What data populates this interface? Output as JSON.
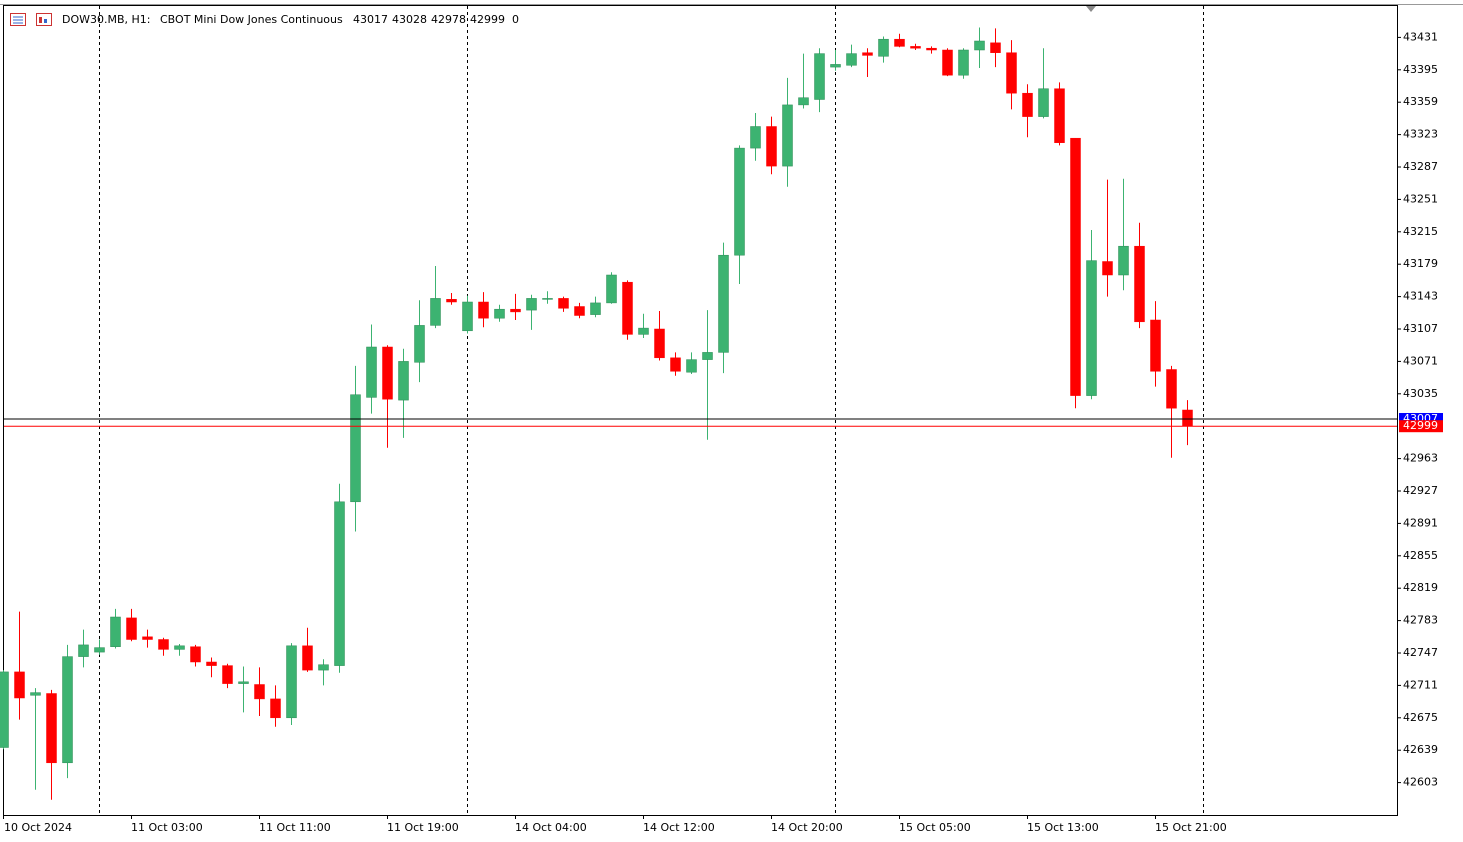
{
  "chart_data": {
    "type": "candlestick",
    "symbol": "DOW30.MB, H1:",
    "description": "CBOT Mini Dow Jones Continuous",
    "last_bar": [
      43017,
      43028,
      42978,
      42999
    ],
    "volume": 0,
    "categories": [
      "10 Oct 2024",
      null,
      null,
      null,
      null,
      null,
      null,
      null,
      "11 Oct 03:00",
      null,
      null,
      null,
      null,
      null,
      null,
      null,
      "11 Oct 11:00",
      null,
      null,
      null,
      null,
      null,
      null,
      null,
      "11 Oct 19:00",
      null,
      null,
      null,
      null,
      null,
      null,
      null,
      "14 Oct 04:00",
      null,
      null,
      null,
      null,
      null,
      null,
      null,
      "14 Oct 12:00",
      null,
      null,
      null,
      null,
      null,
      null,
      null,
      "14 Oct 20:00",
      null,
      null,
      null,
      null,
      null,
      null,
      null,
      "15 Oct 05:00",
      null,
      null,
      null,
      null,
      null,
      null,
      null,
      "15 Oct 13:00",
      null,
      null,
      null,
      null,
      null,
      null,
      null,
      "15 Oct 21:00",
      null,
      null
    ],
    "open": [
      42642,
      42726,
      42700,
      42702,
      42625,
      42743,
      42748,
      42754,
      42786,
      42765,
      42762,
      42751,
      42754,
      42737,
      42733,
      42713,
      42712,
      42696,
      42675,
      42755,
      42728,
      42733,
      42915,
      43031,
      43087,
      43028,
      43070,
      43111,
      43140,
      43105,
      43137,
      43119,
      43129,
      43128,
      43140,
      43141,
      43132,
      43123,
      43136,
      43159,
      43101,
      43107,
      43075,
      43059,
      43073,
      43081,
      43189,
      43308,
      43332,
      43288,
      43356,
      43362,
      43398,
      43400,
      43414,
      43410,
      43429,
      43421,
      43419,
      43417,
      43389,
      43417,
      43425,
      43414,
      43369,
      43343,
      43374,
      43319,
      43033,
      43182,
      43167,
      43199,
      43117,
      43062,
      43017
    ],
    "high": [
      42728,
      42793,
      42708,
      42706,
      42756,
      42773,
      42762,
      42796,
      42796,
      42773,
      42764,
      42757,
      42756,
      42742,
      42735,
      42732,
      42731,
      42711,
      42758,
      42775,
      42740,
      42935,
      43066,
      43112,
      43089,
      43085,
      43139,
      43177,
      43147,
      43144,
      43148,
      43134,
      43146,
      43145,
      43149,
      43143,
      43136,
      43143,
      43170,
      43161,
      43124,
      43127,
      43081,
      43081,
      43128,
      43203,
      43311,
      43347,
      43343,
      43386,
      43413,
      43419,
      43417,
      43423,
      43419,
      43432,
      43435,
      43424,
      43421,
      43419,
      43419,
      43442,
      43441,
      43428,
      43379,
      43419,
      43381,
      43319,
      43217,
      43273,
      43274,
      43225,
      43138,
      43066,
      43028
    ],
    "low": [
      42640,
      42673,
      42595,
      42584,
      42608,
      42731,
      42745,
      42752,
      42760,
      42753,
      42744,
      42744,
      42732,
      42720,
      42708,
      42681,
      42677,
      42665,
      42667,
      42726,
      42711,
      42725,
      42882,
      43013,
      42975,
      42986,
      43048,
      43108,
      43134,
      43102,
      43109,
      43115,
      43117,
      43106,
      43135,
      43126,
      43119,
      43120,
      43135,
      43095,
      43097,
      43072,
      43055,
      43057,
      42984,
      43058,
      43157,
      43294,
      43279,
      43265,
      43352,
      43348,
      43394,
      43398,
      43387,
      43403,
      43420,
      43417,
      43413,
      43388,
      43385,
      43397,
      43398,
      43351,
      43320,
      43341,
      43311,
      43019,
      43029,
      43143,
      43150,
      43108,
      43043,
      42964,
      42978
    ],
    "close": [
      42726,
      42697,
      42703,
      42625,
      42743,
      42756,
      42753,
      42787,
      42762,
      42762,
      42751,
      42755,
      42737,
      42733,
      42713,
      42715,
      42696,
      42675,
      42755,
      42728,
      42734,
      42915,
      43034,
      43087,
      43029,
      43071,
      43111,
      43141,
      43137,
      43137,
      43119,
      43129,
      43126,
      43141,
      43141,
      43130,
      43122,
      43136,
      43167,
      43101,
      43108,
      43075,
      43060,
      43073,
      43081,
      43189,
      43308,
      43332,
      43288,
      43356,
      43364,
      43413,
      43401,
      43413,
      43411,
      43429,
      43421,
      43419,
      43417,
      43389,
      43417,
      43427,
      43414,
      43369,
      43343,
      43374,
      43314,
      43033,
      43183,
      43167,
      43199,
      43115,
      43060,
      43019,
      42999
    ],
    "up_color": "#3cb371",
    "down_color": "#ff0000",
    "ylim": [
      42567,
      43467
    ],
    "yticks": [
      43431,
      43395,
      43359,
      43323,
      43287,
      43251,
      43215,
      43179,
      43143,
      43107,
      43071,
      43035,
      42963,
      42927,
      42891,
      42855,
      42819,
      42783,
      42747,
      42711,
      42675,
      42639,
      42603
    ],
    "ask_line": {
      "value": 43007,
      "color": "#0000ff"
    },
    "bid_line": {
      "value": 42999,
      "color": "#ff0000"
    }
  }
}
